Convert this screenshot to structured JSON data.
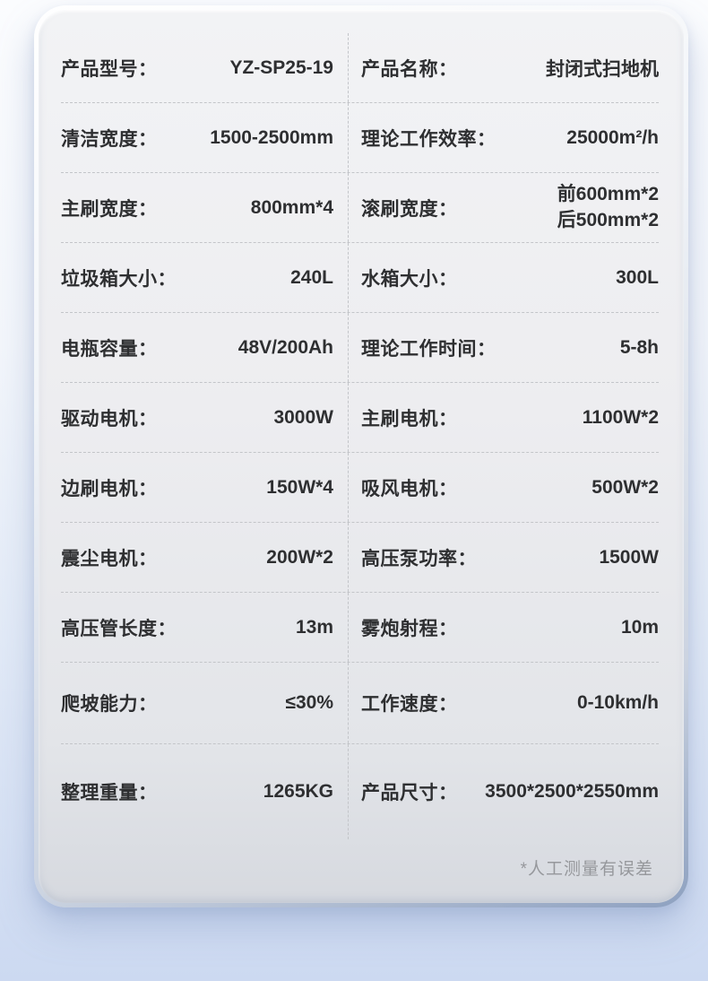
{
  "card": {
    "rows": [
      {
        "left": {
          "label": "产品型号：",
          "value": "YZ-SP25-19"
        },
        "right": {
          "label": "产品名称：",
          "value": "封闭式扫地机"
        }
      },
      {
        "left": {
          "label": "清洁宽度：",
          "value": "1500-2500mm"
        },
        "right": {
          "label": "理论工作效率：",
          "value": "25000m²/h"
        }
      },
      {
        "left": {
          "label": "主刷宽度：",
          "value": "800mm*4"
        },
        "right": {
          "label": "滚刷宽度：",
          "value": "前600mm*2",
          "value2": "后500mm*2"
        }
      },
      {
        "left": {
          "label": "垃圾箱大小：",
          "value": "240L"
        },
        "right": {
          "label": "水箱大小：",
          "value": "300L"
        }
      },
      {
        "left": {
          "label": "电瓶容量：",
          "value": "48V/200Ah"
        },
        "right": {
          "label": "理论工作时间：",
          "value": "5-8h"
        }
      },
      {
        "left": {
          "label": "驱动电机：",
          "value": "3000W"
        },
        "right": {
          "label": "主刷电机：",
          "value": "1100W*2"
        }
      },
      {
        "left": {
          "label": "边刷电机：",
          "value": "150W*4"
        },
        "right": {
          "label": "吸风电机：",
          "value": "500W*2"
        }
      },
      {
        "left": {
          "label": "震尘电机：",
          "value": "200W*2"
        },
        "right": {
          "label": "高压泵功率：",
          "value": "1500W"
        }
      },
      {
        "left": {
          "label": "高压管长度：",
          "value": "13m"
        },
        "right": {
          "label": "雾炮射程：",
          "value": "10m"
        }
      },
      {
        "left": {
          "label": "爬坡能力：",
          "value": "≤30%"
        },
        "right": {
          "label": "工作速度：",
          "value": "0-10km/h"
        }
      },
      {
        "left": {
          "label": "整理重量：",
          "value": "1265KG"
        },
        "right": {
          "label": "产品尺寸：",
          "value": "3500*2500*2550mm"
        }
      }
    ],
    "footnote": "*人工测量有误差"
  },
  "colors": {
    "text": "#2e2f31",
    "divider": "#c3c5c9",
    "footnote_text": "#96989c",
    "card_top": "#f2f3f5",
    "card_bottom": "#d6d9df",
    "page_bottom": "#ccd9f1"
  }
}
